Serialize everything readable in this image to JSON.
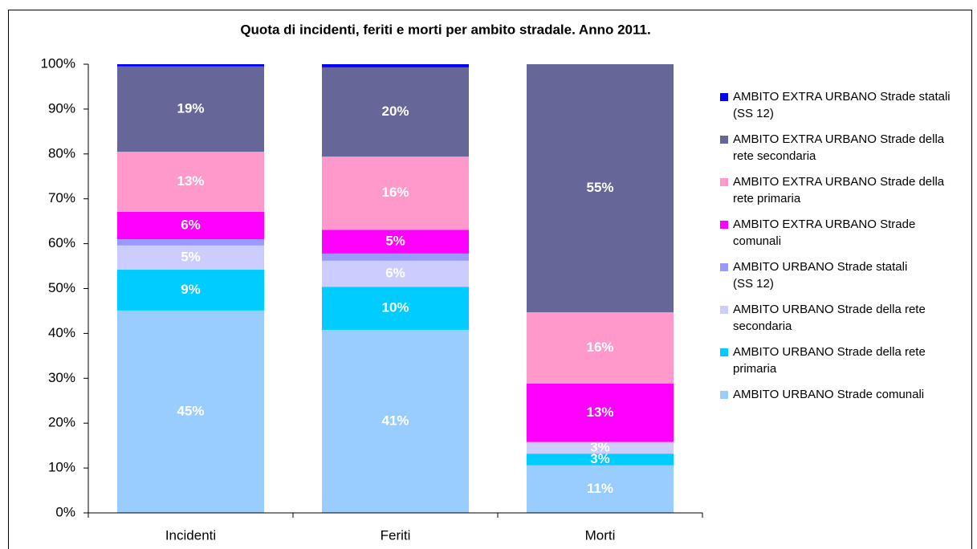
{
  "chart_data": {
    "type": "stacked_bar_percent",
    "title": "Quota di incidenti, feriti e morti per ambito stradale. Anno 2011.",
    "categories": [
      "Incidenti",
      "Feriti",
      "Morti"
    ],
    "ylim": [
      0,
      100
    ],
    "yticks": [
      {
        "value": 0,
        "label": "0%"
      },
      {
        "value": 10,
        "label": "10%"
      },
      {
        "value": 20,
        "label": "20%"
      },
      {
        "value": 30,
        "label": "30%"
      },
      {
        "value": 40,
        "label": "40%"
      },
      {
        "value": 50,
        "label": "50%"
      },
      {
        "value": 60,
        "label": "60%"
      },
      {
        "value": 70,
        "label": "70%"
      },
      {
        "value": 80,
        "label": "80%"
      },
      {
        "value": 90,
        "label": "90%"
      },
      {
        "value": 100,
        "label": "100%"
      }
    ],
    "legend": "right",
    "series": [
      {
        "name": "AMBITO URBANO Strade comunali",
        "color": "#99ccff",
        "values": [
          45.1,
          40.8,
          10.6
        ],
        "value_labels": [
          "45%",
          "41%",
          "11%"
        ]
      },
      {
        "name": "AMBITO URBANO Strade della rete primaria",
        "color": "#00ccff",
        "values": [
          9.1,
          9.6,
          2.6
        ],
        "value_labels": [
          "9%",
          "10%",
          "3%"
        ]
      },
      {
        "name": "AMBITO URBANO Strade della rete secondaria",
        "color": "#ccccff",
        "values": [
          5.4,
          5.8,
          2.6
        ],
        "value_labels": [
          "5%",
          "6%",
          "3%"
        ]
      },
      {
        "name": "AMBITO URBANO Strade statali\n(SS 12)",
        "color": "#9999ff",
        "values": [
          1.4,
          1.6,
          0
        ],
        "value_labels": [
          null,
          null,
          null
        ]
      },
      {
        "name": "AMBITO EXTRA URBANO Strade comunali",
        "color": "#ff00ff",
        "values": [
          6.1,
          5.3,
          13.0
        ],
        "value_labels": [
          "6%",
          "5%",
          "13%"
        ]
      },
      {
        "name": "AMBITO EXTRA URBANO Strade della rete primaria",
        "color": "#ff99cc",
        "values": [
          13.4,
          16.3,
          15.9
        ],
        "value_labels": [
          "13%",
          "16%",
          "16%"
        ]
      },
      {
        "name": "AMBITO EXTRA URBANO Strade della rete secondaria",
        "color": "#666699",
        "values": [
          19.0,
          19.9,
          55.3
        ],
        "value_labels": [
          "19%",
          "20%",
          "55%"
        ]
      },
      {
        "name": "AMBITO EXTRA URBANO Strade statali\n(SS 12)",
        "color": "#0000ff",
        "values": [
          0.5,
          0.7,
          0
        ],
        "value_labels": [
          null,
          null,
          null
        ]
      }
    ]
  }
}
